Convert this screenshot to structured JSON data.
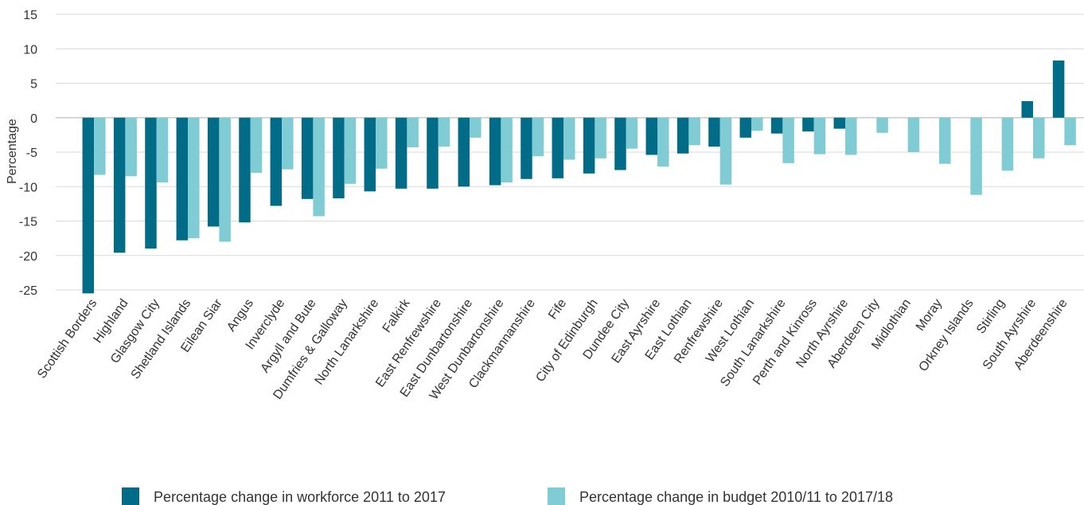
{
  "chart_data": {
    "type": "bar",
    "y_label": "Percentage",
    "categories": [
      "Scottish Borders",
      "Highland",
      "Glasgow City",
      "Shetland Islands",
      "Eilean Siar",
      "Angus",
      "Inverclyde",
      "Argyll and Bute",
      "Dumfries & Galloway",
      "North Lanarkshire",
      "Falkirk",
      "East Renfrewshire",
      "East Dunbartonshire",
      "West Dunbartonshire",
      "Clackmannanshire",
      "Fife",
      "City of Edinburgh",
      "Dundee City",
      "East Ayrshire",
      "East Lothian",
      "Renfrewshire",
      "West Lothian",
      "South Lanarkshire",
      "Perth and Kinross",
      "North Ayrshire",
      "Aberdeen City",
      "Midlothian",
      "Moray",
      "Orkney Islands",
      "Stirling",
      "South Ayrshire",
      "Aberdeenshire"
    ],
    "series": [
      {
        "name": "Percentage change in workforce 2011 to 2017",
        "color": "#006c87",
        "values": [
          -25.5,
          -19.6,
          -19,
          -17.8,
          -15.8,
          -15.2,
          -12.8,
          -11.8,
          -11.7,
          -10.7,
          -10.3,
          -10.3,
          -10,
          -9.8,
          -8.9,
          -8.8,
          -8.1,
          -7.6,
          -5.4,
          -5.2,
          -4.2,
          -2.9,
          -2.3,
          -2,
          -1.6,
          0,
          0,
          0,
          0,
          0,
          2.4,
          8.3
        ]
      },
      {
        "name": "Percentage change in budget 2010/11 to 2017/18",
        "color": "#7fccd4",
        "values": [
          -8.3,
          -8.5,
          -9.4,
          -17.5,
          -18,
          -8,
          -7.5,
          -14.3,
          -9.6,
          -7.4,
          -4.3,
          -4.2,
          -2.9,
          -9.4,
          -5.6,
          -6.1,
          -5.9,
          -4.5,
          -7.1,
          -4,
          -9.7,
          -1.9,
          -6.6,
          -5.3,
          -5.4,
          -2.2,
          -5,
          -6.7,
          -11.2,
          -7.7,
          -5.9,
          -4
        ]
      }
    ],
    "ylim": [
      -25,
      15
    ],
    "yticks": [
      -25,
      -20,
      -15,
      -10,
      -5,
      0,
      5,
      10,
      15
    ],
    "grid": true
  }
}
